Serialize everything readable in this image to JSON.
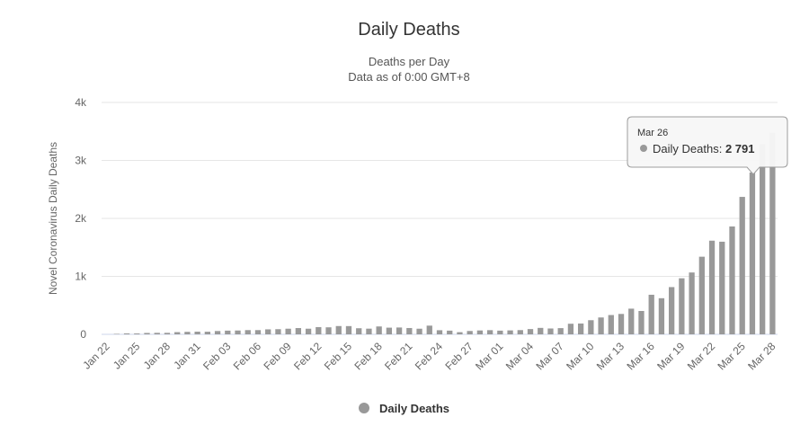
{
  "chart_data": {
    "type": "bar",
    "title": "Daily Deaths",
    "subtitle_lines": [
      "Deaths per Day",
      "Data as of 0:00 GMT+8"
    ],
    "ylabel": "Novel Coronavirus Daily Deaths",
    "xlabel": "",
    "ylim": [
      0,
      4000
    ],
    "y_ticks": [
      "0",
      "1k",
      "2k",
      "3k",
      "4k"
    ],
    "y_tick_values": [
      0,
      1000,
      2000,
      3000,
      4000
    ],
    "grid": true,
    "legend_position": "bottom-center",
    "bar_color": "#999999",
    "categories": [
      "Jan 22",
      "Jan 23",
      "Jan 24",
      "Jan 25",
      "Jan 26",
      "Jan 27",
      "Jan 28",
      "Jan 29",
      "Jan 30",
      "Jan 31",
      "Feb 01",
      "Feb 02",
      "Feb 03",
      "Feb 04",
      "Feb 05",
      "Feb 06",
      "Feb 07",
      "Feb 08",
      "Feb 09",
      "Feb 10",
      "Feb 11",
      "Feb 12",
      "Feb 13",
      "Feb 14",
      "Feb 15",
      "Feb 16",
      "Feb 17",
      "Feb 18",
      "Feb 19",
      "Feb 20",
      "Feb 21",
      "Feb 22",
      "Feb 23",
      "Feb 24",
      "Feb 25",
      "Feb 26",
      "Feb 27",
      "Feb 28",
      "Feb 29",
      "Mar 01",
      "Mar 02",
      "Mar 03",
      "Mar 04",
      "Mar 05",
      "Mar 06",
      "Mar 07",
      "Mar 08",
      "Mar 09",
      "Mar 10",
      "Mar 11",
      "Mar 12",
      "Mar 13",
      "Mar 14",
      "Mar 15",
      "Mar 16",
      "Mar 17",
      "Mar 18",
      "Mar 19",
      "Mar 20",
      "Mar 21",
      "Mar 22",
      "Mar 23",
      "Mar 24",
      "Mar 25",
      "Mar 26",
      "Mar 27",
      "Mar 28"
    ],
    "tick_labels": [
      "Jan 22",
      "Jan 25",
      "Jan 28",
      "Jan 31",
      "Feb 03",
      "Feb 06",
      "Feb 09",
      "Feb 12",
      "Feb 15",
      "Feb 18",
      "Feb 21",
      "Feb 24",
      "Feb 27",
      "Mar 01",
      "Mar 04",
      "Mar 07",
      "Mar 10",
      "Mar 13",
      "Mar 16",
      "Mar 19",
      "Mar 22",
      "Mar 25",
      "Mar 28"
    ],
    "series": [
      {
        "name": "Daily Deaths",
        "values": [
          0,
          8,
          16,
          15,
          24,
          26,
          26,
          38,
          43,
          46,
          45,
          57,
          64,
          66,
          73,
          73,
          86,
          89,
          97,
          108,
          97,
          125,
          121,
          143,
          142,
          105,
          98,
          136,
          115,
          118,
          109,
          97,
          150,
          71,
          64,
          37,
          58,
          67,
          72,
          64,
          68,
          73,
          91,
          111,
          101,
          107,
          183,
          187,
          244,
          291,
          333,
          352,
          443,
          403,
          683,
          623,
          815,
          967,
          1067,
          1339,
          1616,
          1598,
          1861,
          2371,
          2791,
          3285,
          3475
        ]
      }
    ],
    "tooltip": {
      "category": "Mar 26",
      "series": "Daily Deaths",
      "value_text": "2 791"
    }
  }
}
